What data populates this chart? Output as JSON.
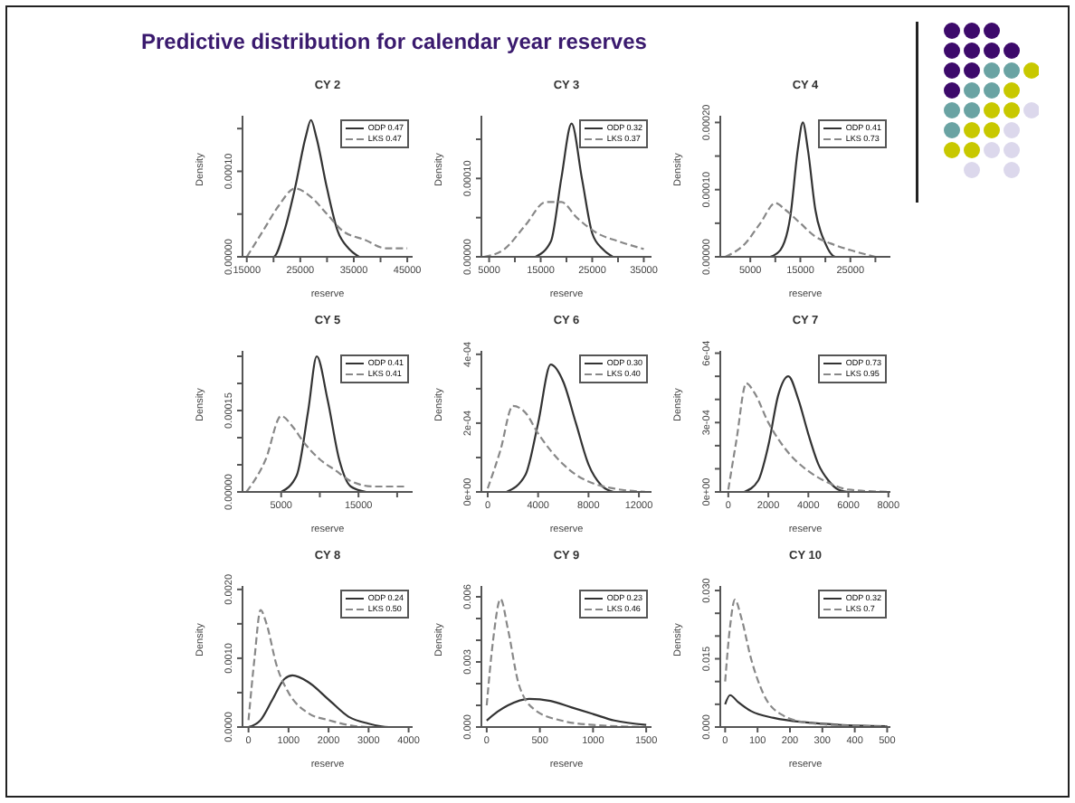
{
  "chart_data": [
    {
      "type": "line",
      "title": "CY 2",
      "annotations": [
        "Predictive distribution for calendar year reserves"
      ],
      "xlabel": "reserve",
      "ylabel": "Density",
      "xlim": [
        14200,
        46000
      ],
      "ylim": [
        0,
        0.000165
      ],
      "xticks": [
        15000,
        {
          "value": 20000,
          "label": null
        },
        25000,
        {
          "value": 30000,
          "label": null
        },
        35000,
        {
          "value": 40000,
          "label": null
        },
        45000
      ],
      "yticks": [
        {
          "value": 0,
          "label": "0.00000"
        },
        {
          "value": 5e-05,
          "label": null
        },
        {
          "value": 0.0001,
          "label": "0.00010"
        },
        {
          "value": 0.00015,
          "label": null
        }
      ],
      "legend": "top right",
      "grid": false,
      "marker": "none",
      "series": [
        {
          "name": "ODP 0.47",
          "color": "#333333",
          "line_style": "solid",
          "x": [
            18000,
            20000,
            22000,
            24000,
            26000,
            27000,
            28000,
            30000,
            32000,
            34000,
            36000
          ],
          "values": [
            0,
            0,
            3e-05,
            8e-05,
            0.00014,
            0.00016,
            0.00014,
            8e-05,
            3e-05,
            1e-05,
            0
          ]
        },
        {
          "name": "LKS 0.47",
          "color": "#888888",
          "line_style": "dashed",
          "x": [
            15000,
            18000,
            21000,
            24000,
            27000,
            30000,
            33000,
            37000,
            41000,
            45000
          ],
          "values": [
            0,
            3e-05,
            6e-05,
            8e-05,
            7e-05,
            5e-05,
            3e-05,
            2e-05,
            1e-05,
            1e-05
          ]
        }
      ]
    },
    {
      "type": "line",
      "title": "CY 3",
      "xlabel": "reserve",
      "ylabel": "Density",
      "xlim": [
        3500,
        36500
      ],
      "ylim": [
        0,
        0.00018
      ],
      "xticks": [
        5000,
        {
          "value": 10000,
          "label": null
        },
        15000,
        {
          "value": 20000,
          "label": null
        },
        25000,
        {
          "value": 30000,
          "label": null
        },
        35000
      ],
      "yticks": [
        {
          "value": 0,
          "label": "0.00000"
        },
        {
          "value": 5e-05,
          "label": null
        },
        {
          "value": 0.0001,
          "label": "0.00010"
        },
        {
          "value": 0.00015,
          "label": null
        }
      ],
      "legend": "top right",
      "grid": false,
      "marker": "none",
      "series": [
        {
          "name": "ODP 0.32",
          "color": "#333333",
          "line_style": "solid",
          "x": [
            14000,
            17000,
            19000,
            21000,
            23000,
            25000,
            27000,
            29000
          ],
          "values": [
            0,
            2e-05,
            0.0001,
            0.00017,
            0.0001,
            3e-05,
            1e-05,
            0
          ]
        },
        {
          "name": "LKS 0.37",
          "color": "#888888",
          "line_style": "dashed",
          "x": [
            4000,
            8000,
            12000,
            16000,
            19000,
            22000,
            26000,
            30000,
            35000
          ],
          "values": [
            0,
            1e-05,
            4e-05,
            7e-05,
            7e-05,
            5e-05,
            3e-05,
            2e-05,
            1e-05
          ]
        }
      ]
    },
    {
      "type": "line",
      "title": "CY 4",
      "xlabel": "reserve",
      "ylabel": "Density",
      "xlim": [
        -1000,
        33000
      ],
      "ylim": [
        0,
        0.00021
      ],
      "xticks": [
        5000,
        {
          "value": 10000,
          "label": null
        },
        15000,
        {
          "value": 20000,
          "label": null
        },
        25000,
        {
          "value": 30000,
          "label": null
        }
      ],
      "yticks": [
        {
          "value": 0,
          "label": "0.00000"
        },
        {
          "value": 5e-05,
          "label": null
        },
        {
          "value": 0.0001,
          "label": "0.00010"
        },
        {
          "value": 0.00015,
          "label": null
        },
        {
          "value": 0.0002,
          "label": "0.00020"
        }
      ],
      "legend": "top right",
      "grid": false,
      "marker": "none",
      "series": [
        {
          "name": "ODP 0.41",
          "color": "#333333",
          "line_style": "solid",
          "x": [
            9000,
            11000,
            13000,
            14500,
            15500,
            16500,
            18000,
            20000,
            22000,
            24000
          ],
          "values": [
            0,
            1e-05,
            6e-05,
            0.00016,
            0.0002,
            0.00016,
            7e-05,
            2e-05,
            0,
            0
          ]
        },
        {
          "name": "LKS 0.73",
          "color": "#888888",
          "line_style": "dashed",
          "x": [
            0,
            4000,
            7000,
            10000,
            12000,
            15000,
            18000,
            21000,
            25000,
            30000
          ],
          "values": [
            0,
            2e-05,
            5e-05,
            8e-05,
            7e-05,
            5e-05,
            3e-05,
            2e-05,
            1e-05,
            0
          ]
        }
      ]
    },
    {
      "type": "line",
      "title": "CY 5",
      "xlabel": "reserve",
      "ylabel": "Density",
      "xlim": [
        0,
        22000
      ],
      "ylim": [
        0,
        0.00026
      ],
      "xticks": [
        5000,
        {
          "value": 10000,
          "label": null
        },
        15000,
        {
          "value": 20000,
          "label": null
        }
      ],
      "yticks": [
        {
          "value": 0,
          "label": "0.00000"
        },
        {
          "value": 5e-05,
          "label": null
        },
        {
          "value": 0.0001,
          "label": null
        },
        {
          "value": 0.00015,
          "label": "0.00015"
        },
        {
          "value": 0.0002,
          "label": null
        },
        {
          "value": 0.00025,
          "label": null
        }
      ],
      "legend": "top right",
      "grid": false,
      "marker": "none",
      "series": [
        {
          "name": "ODP 0.41",
          "color": "#333333",
          "line_style": "solid",
          "x": [
            5000,
            7000,
            8500,
            9600,
            11000,
            12500,
            14000,
            16000
          ],
          "values": [
            0,
            3e-05,
            0.00015,
            0.00025,
            0.00017,
            6e-05,
            1e-05,
            0
          ]
        },
        {
          "name": "LKS 0.41",
          "color": "#888888",
          "line_style": "dashed",
          "x": [
            500,
            3000,
            5000,
            6500,
            8000,
            10000,
            12000,
            14000,
            17000,
            21000
          ],
          "values": [
            0,
            6e-05,
            0.00014,
            0.00012,
            9e-05,
            6e-05,
            4e-05,
            2e-05,
            1e-05,
            1e-05
          ]
        }
      ]
    },
    {
      "type": "line",
      "title": "CY 6",
      "xlabel": "reserve",
      "ylabel": "Density",
      "xlim": [
        -500,
        13000
      ],
      "ylim": [
        0,
        0.00041
      ],
      "xticks": [
        0,
        4000,
        8000,
        12000
      ],
      "yticks": [
        {
          "value": 0,
          "label": "0e+00"
        },
        {
          "value": 0.0001,
          "label": null
        },
        {
          "value": 0.0002,
          "label": "2e-04"
        },
        {
          "value": 0.0003,
          "label": null
        },
        {
          "value": 0.0004,
          "label": "4e-04"
        }
      ],
      "legend": "top right",
      "grid": false,
      "marker": "none",
      "series": [
        {
          "name": "ODP 0.30",
          "color": "#333333",
          "line_style": "solid",
          "x": [
            1500,
            3000,
            4000,
            5000,
            6000,
            7000,
            8000,
            9000,
            10000
          ],
          "values": [
            0,
            5e-05,
            0.0002,
            0.00037,
            0.00032,
            0.0002,
            8e-05,
            2e-05,
            0
          ]
        },
        {
          "name": "LKS 0.40",
          "color": "#888888",
          "line_style": "dashed",
          "x": [
            0,
            1000,
            2000,
            3000,
            4000,
            5000,
            6000,
            7000,
            8000,
            10000,
            12500
          ],
          "values": [
            1e-05,
            0.00012,
            0.00025,
            0.00023,
            0.00017,
            0.00012,
            8e-05,
            5e-05,
            3e-05,
            1e-05,
            0
          ]
        }
      ]
    },
    {
      "type": "line",
      "title": "CY 7",
      "xlabel": "reserve",
      "ylabel": "Density",
      "xlim": [
        -400,
        8100
      ],
      "ylim": [
        0,
        0.00061
      ],
      "xticks": [
        0,
        2000,
        4000,
        6000,
        8000
      ],
      "yticks": [
        {
          "value": 0,
          "label": "0e+00"
        },
        {
          "value": 0.0001,
          "label": null
        },
        {
          "value": 0.0002,
          "label": null
        },
        {
          "value": 0.0003,
          "label": "3e-04"
        },
        {
          "value": 0.0004,
          "label": null
        },
        {
          "value": 0.0005,
          "label": null
        },
        {
          "value": 0.0006,
          "label": "6e-04"
        }
      ],
      "legend": "top right",
      "grid": false,
      "marker": "none",
      "series": [
        {
          "name": "ODP 0.73",
          "color": "#333333",
          "line_style": "solid",
          "x": [
            800,
            1500,
            2000,
            2500,
            3000,
            3500,
            4000,
            4500,
            5000,
            5500,
            6000
          ],
          "values": [
            0,
            5e-05,
            0.0002,
            0.00042,
            0.0005,
            0.0004,
            0.00025,
            0.00012,
            5e-05,
            1e-05,
            0
          ]
        },
        {
          "name": "LKS 0.95",
          "color": "#888888",
          "line_style": "dashed",
          "x": [
            0,
            400,
            900,
            1300,
            2000,
            3000,
            4000,
            5000,
            6000,
            8000
          ],
          "values": [
            1e-05,
            0.00022,
            0.00047,
            0.00043,
            0.0003,
            0.00017,
            9e-05,
            4e-05,
            1e-05,
            0
          ]
        }
      ]
    },
    {
      "type": "line",
      "title": "CY 8",
      "xlabel": "reserve",
      "ylabel": "Density",
      "xlim": [
        -150,
        4100
      ],
      "ylim": [
        0,
        0.00205
      ],
      "xticks": [
        0,
        1000,
        2000,
        3000,
        4000
      ],
      "yticks": [
        {
          "value": 0,
          "label": "0.0000"
        },
        {
          "value": 0.0005,
          "label": null
        },
        {
          "value": 0.001,
          "label": "0.0010"
        },
        {
          "value": 0.0015,
          "label": null
        },
        {
          "value": 0.002,
          "label": "0.0020"
        }
      ],
      "legend": "top right",
      "grid": false,
      "marker": "none",
      "series": [
        {
          "name": "ODP 0.24",
          "color": "#333333",
          "line_style": "solid",
          "x": [
            0,
            300,
            600,
            900,
            1100,
            1500,
            2000,
            2500,
            3000,
            3500,
            4000
          ],
          "values": [
            0,
            0.0001,
            0.0004,
            0.0007,
            0.00075,
            0.00065,
            0.0004,
            0.00015,
            5e-05,
            0,
            0
          ]
        },
        {
          "name": "LKS 0.50",
          "color": "#888888",
          "line_style": "dashed",
          "x": [
            0,
            150,
            300,
            450,
            700,
            1000,
            1500,
            2000,
            3000,
            4000
          ],
          "values": [
            0.0001,
            0.001,
            0.0017,
            0.0015,
            0.0009,
            0.0005,
            0.0002,
            0.0001,
            0,
            0
          ]
        }
      ]
    },
    {
      "type": "line",
      "title": "CY 9",
      "xlabel": "reserve",
      "ylabel": "Density",
      "xlim": [
        -50,
        1550
      ],
      "ylim": [
        0,
        0.0065
      ],
      "xticks": [
        0,
        500,
        1000,
        1500
      ],
      "yticks": [
        {
          "value": 0,
          "label": "0.000"
        },
        {
          "value": 0.001,
          "label": null
        },
        {
          "value": 0.002,
          "label": null
        },
        {
          "value": 0.003,
          "label": "0.003"
        },
        {
          "value": 0.004,
          "label": null
        },
        {
          "value": 0.005,
          "label": null
        },
        {
          "value": 0.006,
          "label": "0.006"
        }
      ],
      "legend": "top right",
      "grid": false,
      "marker": "none",
      "series": [
        {
          "name": "ODP 0.23",
          "color": "#333333",
          "line_style": "solid",
          "x": [
            0,
            100,
            200,
            400,
            600,
            800,
            1000,
            1200,
            1500
          ],
          "values": [
            0.0003,
            0.0007,
            0.001,
            0.0013,
            0.0012,
            0.0009,
            0.0006,
            0.0003,
            0.0001
          ]
        },
        {
          "name": "LKS 0.46",
          "color": "#888888",
          "line_style": "dashed",
          "x": [
            0,
            60,
            130,
            200,
            300,
            450,
            700,
            1000,
            1500
          ],
          "values": [
            0.001,
            0.004,
            0.0059,
            0.0045,
            0.002,
            0.0008,
            0.0003,
            0.0001,
            0
          ]
        }
      ]
    },
    {
      "type": "line",
      "title": "CY 10",
      "xlabel": "reserve",
      "ylabel": "Density",
      "xlim": [
        -15,
        510
      ],
      "ylim": [
        0,
        0.031
      ],
      "xticks": [
        0,
        100,
        200,
        300,
        400,
        500
      ],
      "yticks": [
        {
          "value": 0,
          "label": "0.000"
        },
        {
          "value": 0.005,
          "label": null
        },
        {
          "value": 0.01,
          "label": null
        },
        {
          "value": 0.015,
          "label": "0.015"
        },
        {
          "value": 0.02,
          "label": null
        },
        {
          "value": 0.025,
          "label": null
        },
        {
          "value": 0.03,
          "label": "0.030"
        }
      ],
      "legend": "top right",
      "grid": false,
      "marker": "none",
      "series": [
        {
          "name": "ODP 0.32",
          "color": "#333333",
          "line_style": "solid",
          "x": [
            0,
            15,
            40,
            80,
            150,
            250,
            350,
            500
          ],
          "values": [
            0.005,
            0.007,
            0.0055,
            0.0035,
            0.002,
            0.001,
            0.0005,
            0.0002
          ]
        },
        {
          "name": "LKS 0.7",
          "color": "#888888",
          "line_style": "dashed",
          "x": [
            0,
            15,
            30,
            50,
            80,
            120,
            180,
            250,
            350,
            500
          ],
          "values": [
            0.01,
            0.022,
            0.028,
            0.024,
            0.015,
            0.007,
            0.0025,
            0.001,
            0.0004,
            0.0001
          ]
        }
      ]
    }
  ]
}
